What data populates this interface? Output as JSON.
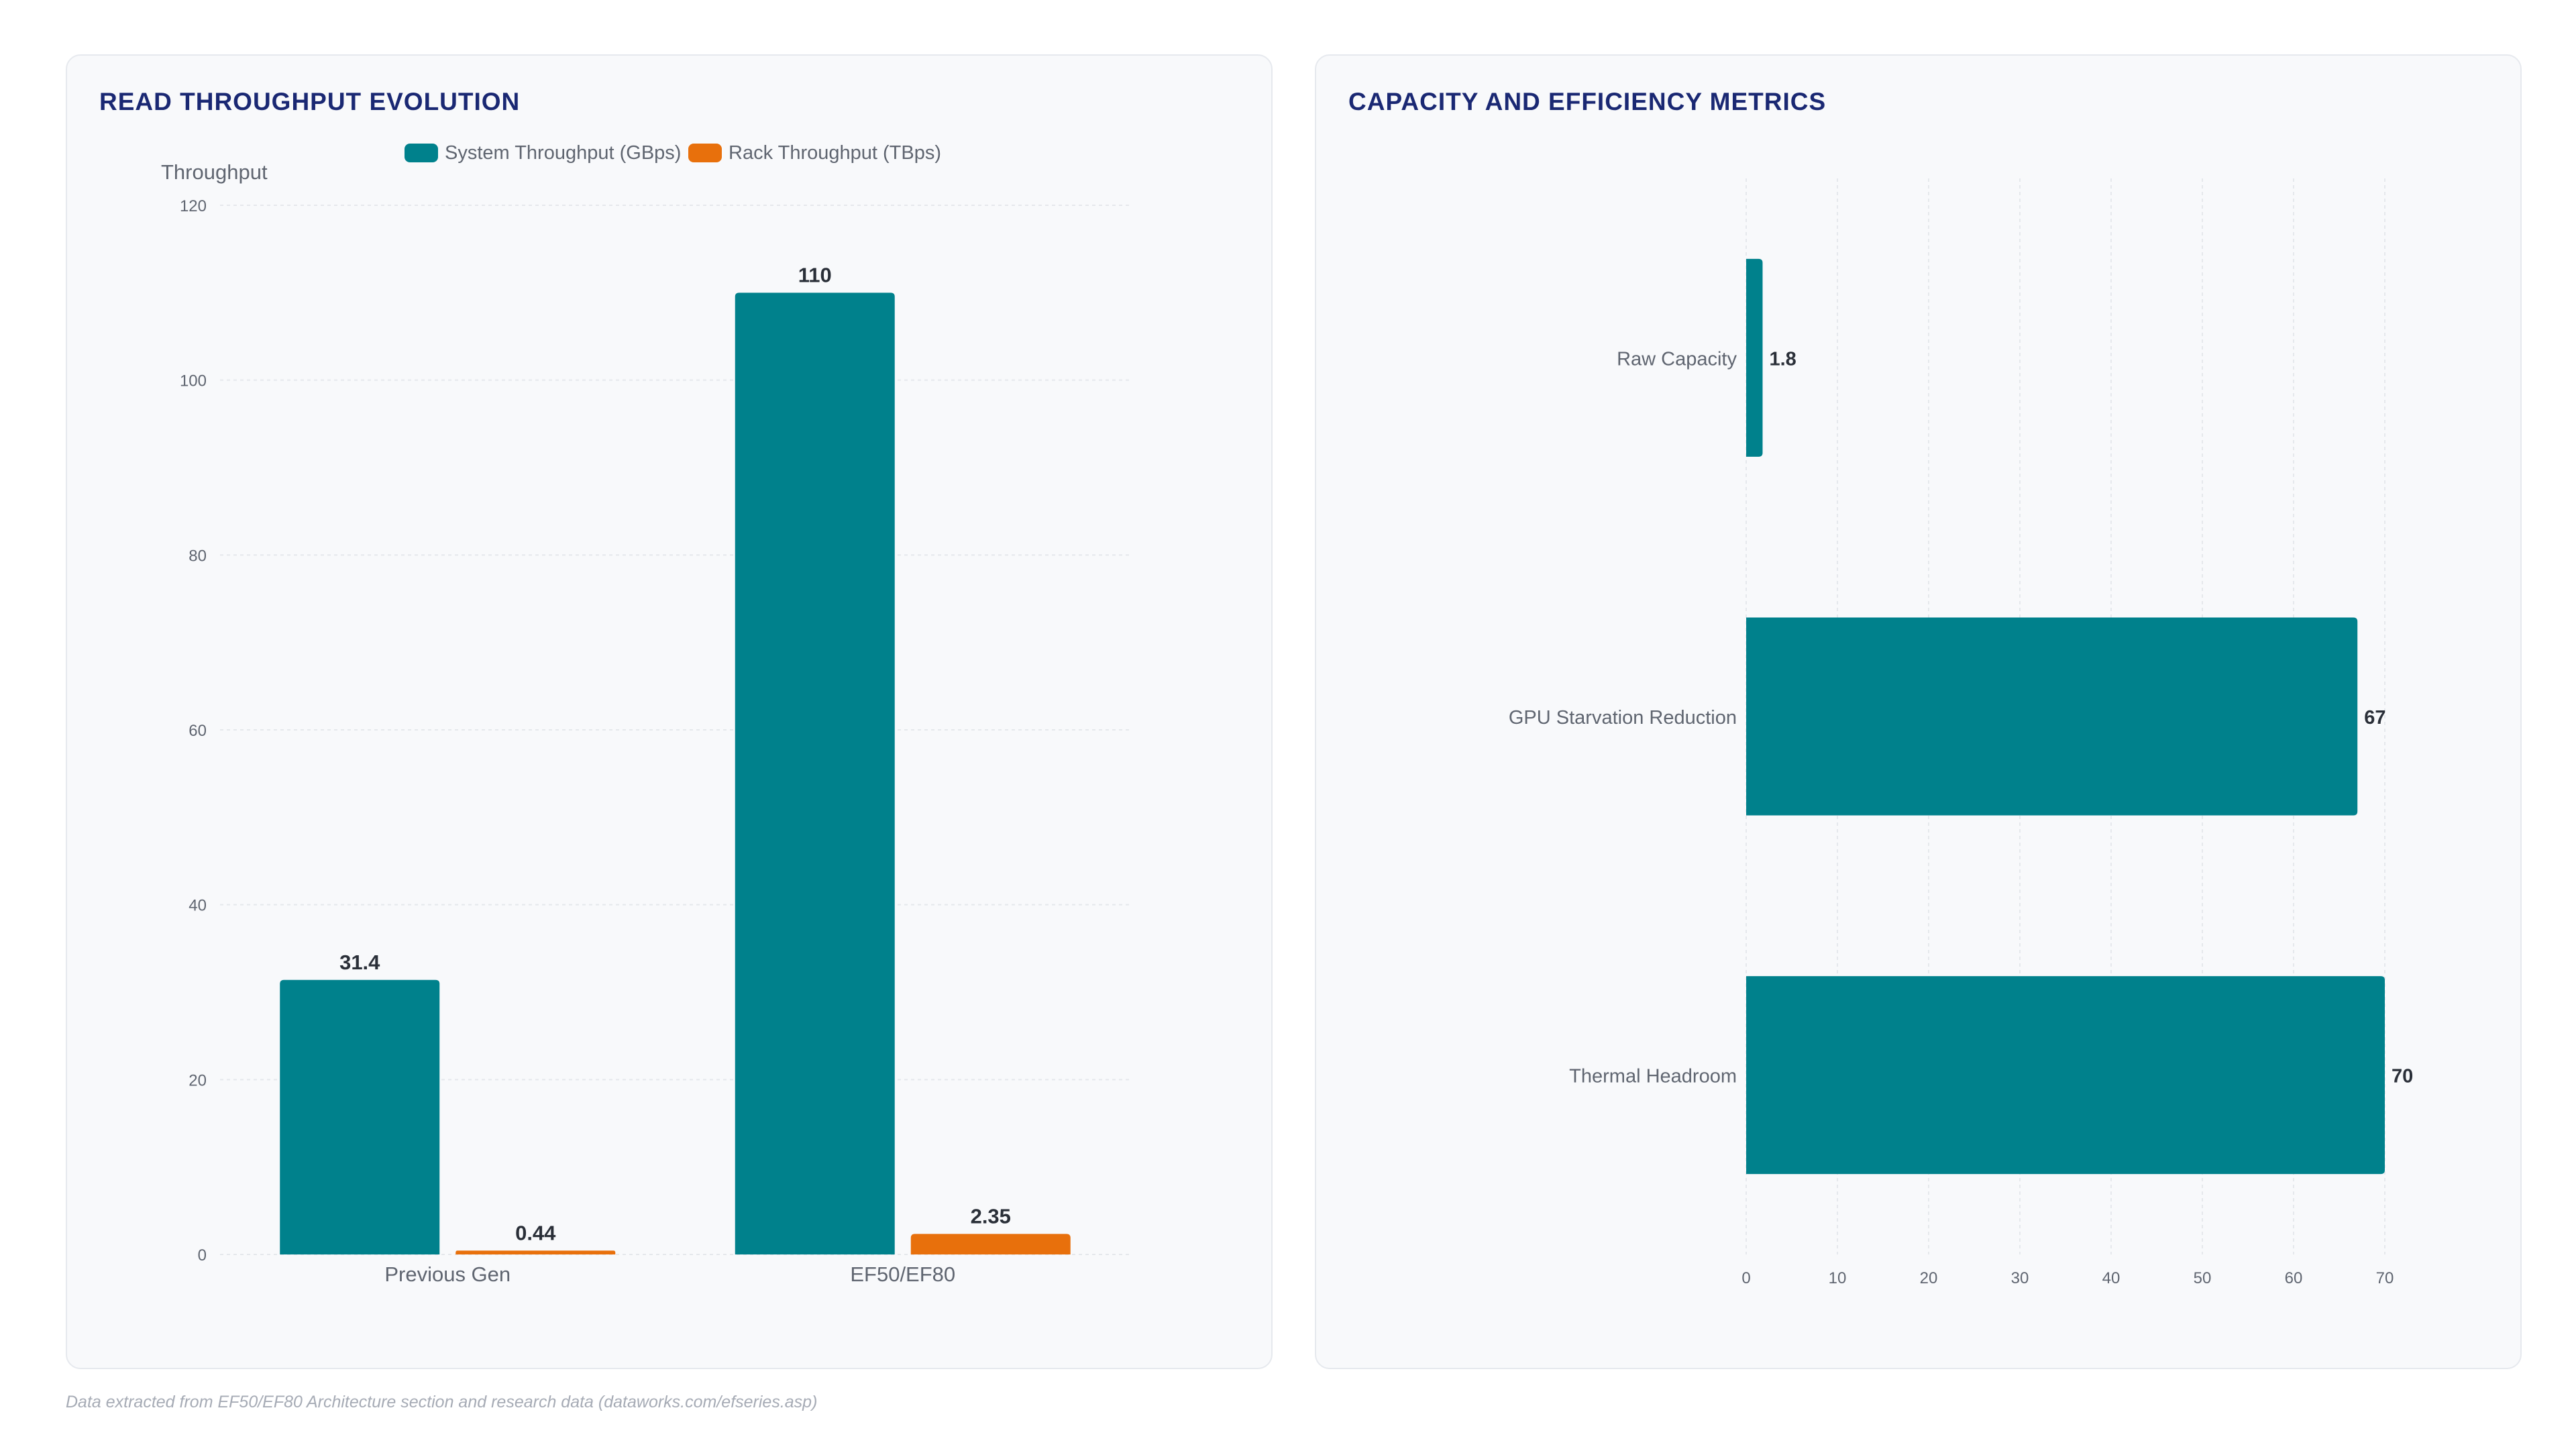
{
  "colors": {
    "teal": "#00818c",
    "orange": "#e8700c",
    "title": "#1a2873",
    "grid": "#e5e8ec",
    "axis_text": "#5f6570",
    "value_text": "#2a2f38"
  },
  "left_chart": {
    "title": "READ THROUGHPUT EVOLUTION"
  },
  "right_chart": {
    "title": "CAPACITY AND EFFICIENCY METRICS"
  },
  "footnote": "Data extracted from EF50/EF80 Architecture section and research data (dataworks.com/efseries.asp)",
  "chart_data": [
    {
      "type": "bar",
      "title": "READ THROUGHPUT EVOLUTION",
      "ylabel": "Throughput",
      "xlabel": "",
      "categories": [
        "Previous Gen",
        "EF50/EF80"
      ],
      "series": [
        {
          "name": "System Throughput (GBps)",
          "values": [
            31.4,
            110
          ],
          "labels": [
            "31.4",
            "110"
          ],
          "color": "#00818c"
        },
        {
          "name": "Rack Throughput (TBps)",
          "values": [
            0.44,
            2.35
          ],
          "labels": [
            "0.44",
            "2.35"
          ],
          "color": "#e8700c"
        }
      ],
      "ylim": [
        0,
        120
      ],
      "yticks": [
        "0",
        "20",
        "40",
        "60",
        "80",
        "100",
        "120"
      ],
      "grid": true,
      "legend": "top-center"
    },
    {
      "type": "bar",
      "orientation": "horizontal",
      "title": "CAPACITY AND EFFICIENCY METRICS",
      "categories": [
        "Raw Capacity",
        "GPU Starvation Reduction",
        "Thermal Headroom"
      ],
      "values": [
        1.8,
        67,
        70
      ],
      "labels": [
        "1.8",
        "67",
        "70"
      ],
      "color": "#00818c",
      "xlim": [
        0,
        70
      ],
      "xticks": [
        "0",
        "10",
        "20",
        "30",
        "40",
        "50",
        "60",
        "70"
      ],
      "grid": true
    }
  ]
}
